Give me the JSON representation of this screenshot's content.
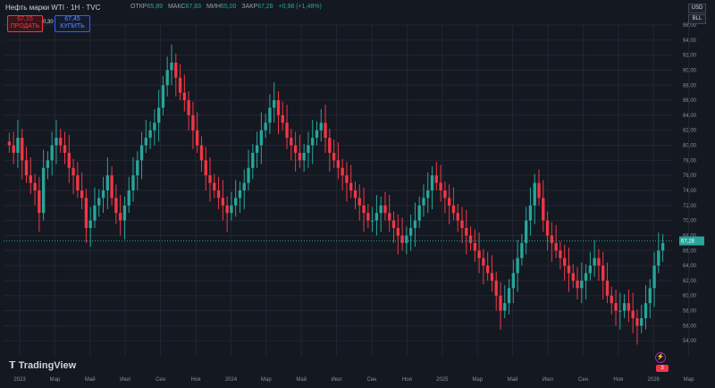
{
  "header": {
    "symbol": "Нефть марки WTI · 1Н · TVC",
    "open_label": "ОТКР",
    "open": "65,89",
    "high_label": "МАКС",
    "high": "67,83",
    "low_label": "МИН",
    "low": "65,00",
    "close_label": "ЗАКР",
    "close": "67,28",
    "change": "+0,98 (+1,48%)"
  },
  "trade": {
    "sell_price": "67,15",
    "sell_label": "ПРОДАТЬ",
    "spread": "0,30",
    "buy_price": "67,45",
    "buy_label": "КУПИТЬ"
  },
  "currency": {
    "usd": "USD",
    "bbl": "BLL"
  },
  "brand": "TradingView",
  "badges": {
    "flag": "3"
  },
  "colors": {
    "up": "#26a69a",
    "down": "#f23645",
    "bg": "#141821",
    "grid": "#232632",
    "axis_text": "#8a8f98",
    "last_price": "#26a69a"
  },
  "chart_data": {
    "type": "candlestick",
    "ylim": [
      52,
      96
    ],
    "y_ticks": [
      "54,00",
      "56,00",
      "58,00",
      "60,00",
      "62,00",
      "64,00",
      "66,00",
      "68,00",
      "70,00",
      "72,00",
      "74,00",
      "76,00",
      "78,00",
      "80,00",
      "82,00",
      "84,00",
      "86,00",
      "88,00",
      "90,00",
      "92,00",
      "94,00",
      "96,00"
    ],
    "x_ticks": [
      "2023",
      "Мар",
      "Май",
      "Июл",
      "Сен",
      "Ноя",
      "2024",
      "Мар",
      "Май",
      "Июл",
      "Сен",
      "Ноя",
      "2025",
      "Мар",
      "Май",
      "Июл",
      "Сен",
      "Ноя",
      "2026",
      "Мар"
    ],
    "last_price": "67,28",
    "closes": [
      80,
      79,
      81,
      78,
      76,
      75,
      74,
      71,
      77,
      78,
      80,
      81,
      80,
      79,
      77,
      76,
      74,
      73,
      69,
      70,
      72,
      73,
      74,
      76,
      73,
      71,
      70,
      72,
      74,
      76,
      78,
      80,
      81,
      82,
      83,
      85,
      88,
      90,
      91,
      89,
      87,
      86,
      84,
      82,
      80,
      78,
      76,
      75,
      74,
      73,
      72,
      71,
      72,
      73,
      74,
      75,
      77,
      79,
      80,
      82,
      83,
      85,
      86,
      84,
      83,
      81,
      80,
      79,
      78,
      79,
      80,
      81,
      82,
      83,
      81,
      79,
      78,
      77,
      76,
      75,
      74,
      73,
      72,
      71,
      70,
      70,
      71,
      72,
      71,
      70,
      69,
      68,
      67,
      68,
      69,
      70,
      72,
      73,
      74,
      76,
      75,
      74,
      73,
      72,
      71,
      70,
      69,
      68,
      67,
      66,
      65,
      64,
      63,
      62,
      60,
      58,
      59,
      61,
      63,
      65,
      67,
      70,
      72,
      75,
      73,
      70,
      68,
      67,
      66,
      65,
      64,
      63,
      62,
      61,
      62,
      63,
      64,
      65,
      64,
      62,
      60,
      59,
      58,
      58,
      59,
      58,
      57,
      56,
      57,
      59,
      61,
      64,
      66,
      67
    ]
  }
}
